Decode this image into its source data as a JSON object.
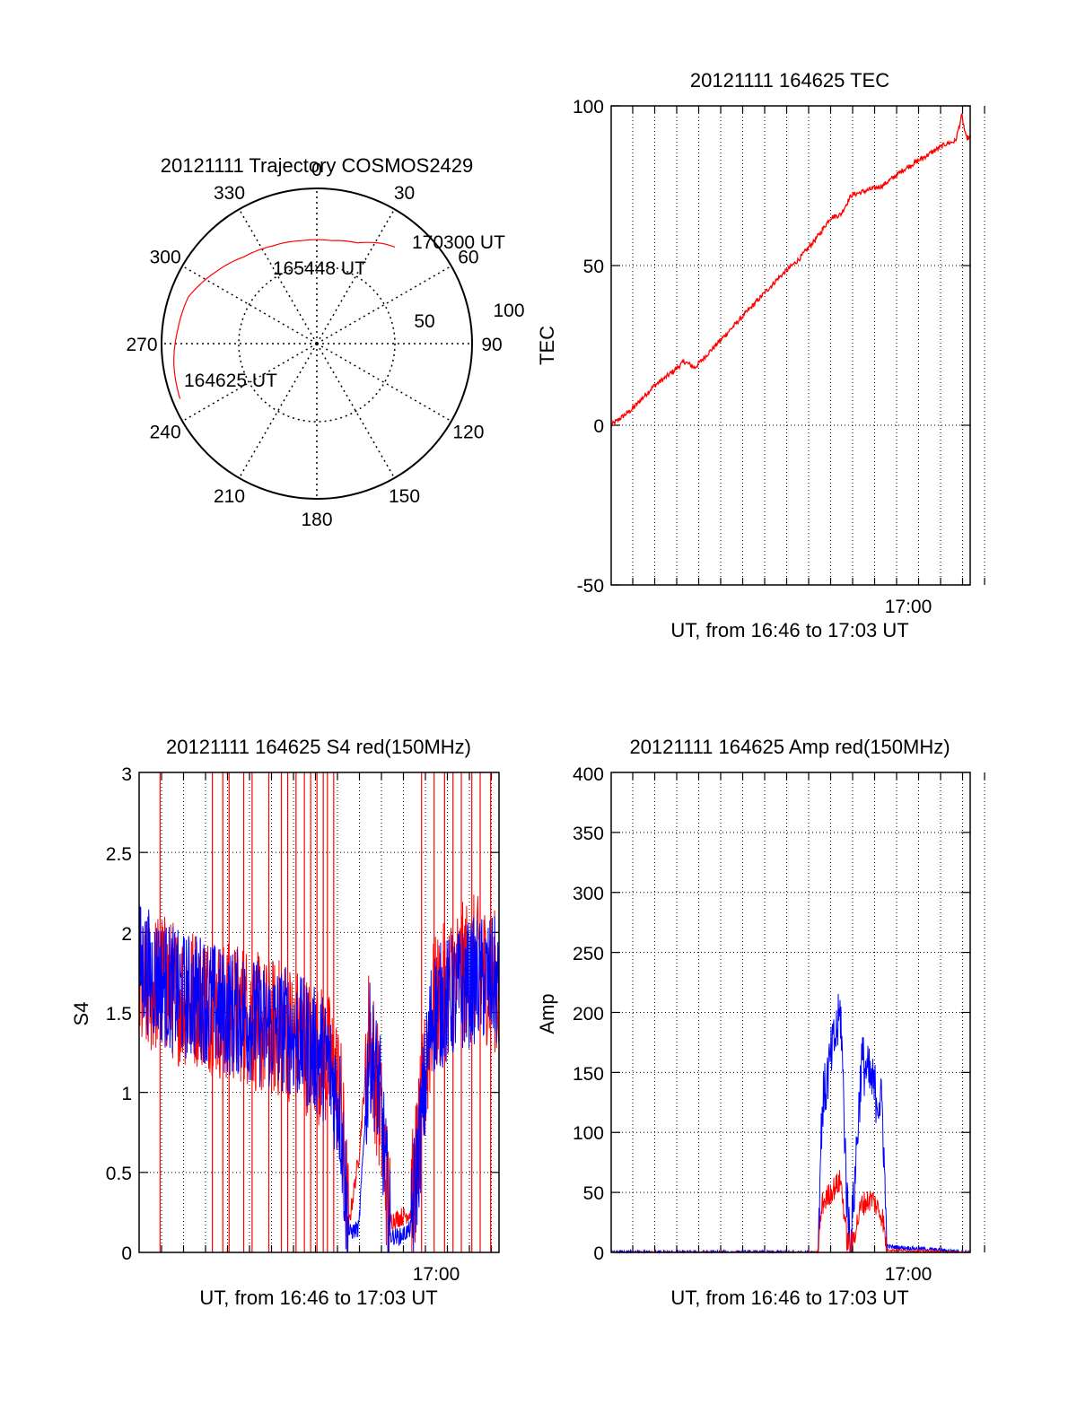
{
  "colors": {
    "red": "#ff0000",
    "blue": "#0000ff",
    "axis": "#000000",
    "grid": "#000000"
  },
  "polar": {
    "title": "20121111 Trajectory COSMOS2429",
    "type": "polar-trajectory",
    "azimuth_labels": [
      "0",
      "30",
      "60",
      "90",
      "120",
      "150",
      "180",
      "210",
      "240",
      "270",
      "300",
      "330"
    ],
    "ring_labels": [
      "50",
      "100"
    ],
    "annotations": [
      "170300 UT",
      "165448 UT",
      "164625 UT"
    ],
    "trajectory": [
      {
        "azimuth_deg": 248,
        "zenith_deg": 95
      },
      {
        "azimuth_deg": 262,
        "zenith_deg": 93
      },
      {
        "azimuth_deg": 276,
        "zenith_deg": 90
      },
      {
        "azimuth_deg": 290,
        "zenith_deg": 88
      },
      {
        "azimuth_deg": 305,
        "zenith_deg": 80
      },
      {
        "azimuth_deg": 320,
        "zenith_deg": 73
      },
      {
        "azimuth_deg": 336,
        "zenith_deg": 69
      },
      {
        "azimuth_deg": 352,
        "zenith_deg": 67
      },
      {
        "azimuth_deg": 8,
        "zenith_deg": 67
      },
      {
        "azimuth_deg": 22,
        "zenith_deg": 70
      },
      {
        "azimuth_deg": 33,
        "zenith_deg": 77
      },
      {
        "azimuth_deg": 39,
        "zenith_deg": 80
      }
    ]
  },
  "tec": {
    "title": "20121111 164625 TEC",
    "ylabel": "TEC",
    "xlabel": "UT, from 16:46 to 17:03 UT",
    "xtick_label": "17:00",
    "ytick_labels": [
      "-50",
      "0",
      "50",
      "100"
    ],
    "chart_data": {
      "type": "line",
      "x_unit": "minutes since 16:46 UT",
      "xlim": [
        0,
        17.2
      ],
      "ylim": [
        -50,
        100
      ],
      "series": [
        {
          "color": "red",
          "x": [
            0,
            1,
            2,
            3,
            3.5,
            4,
            5,
            6,
            7,
            8,
            9,
            10,
            10.5,
            11,
            11.5,
            12,
            13,
            14,
            15,
            16,
            16.5,
            16.8,
            17,
            17.2
          ],
          "y": [
            0,
            5,
            12,
            17,
            20,
            18,
            25,
            32,
            39,
            46,
            52,
            60,
            65,
            66,
            72,
            73,
            75,
            80,
            84,
            88,
            89,
            97,
            90,
            90
          ]
        }
      ]
    }
  },
  "s4": {
    "title": "20121111 164625 S4 red(150MHz)",
    "ylabel": "S4",
    "xlabel": "UT, from 16:46 to 17:03 UT",
    "xtick_label": "17:00",
    "ytick_labels": [
      "0",
      "0.5",
      "1",
      "1.5",
      "2",
      "2.5",
      "3"
    ],
    "chart_data": {
      "type": "line",
      "x_unit": "minutes since 16:46 UT",
      "xlim": [
        0,
        17.2
      ],
      "ylim": [
        0,
        3
      ],
      "series": [
        {
          "color": "red",
          "x": [
            0,
            1,
            2,
            3,
            4,
            5,
            6,
            7,
            8,
            9,
            9.6,
            10,
            10.5,
            11,
            11.5,
            12,
            12.5,
            13,
            14,
            15,
            16,
            17,
            17.2
          ],
          "y": [
            1.6,
            1.7,
            1.6,
            1.6,
            1.5,
            1.5,
            1.4,
            1.4,
            1.3,
            1.2,
            1.0,
            0.15,
            0.6,
            1.4,
            0.9,
            0.2,
            0.22,
            0.25,
            1.5,
            1.7,
            1.8,
            1.7,
            1.6
          ]
        },
        {
          "color": "blue",
          "x": [
            0,
            1,
            2,
            3,
            4,
            5,
            6,
            7,
            8,
            9,
            9.6,
            10,
            10.5,
            11,
            11.5,
            12,
            12.5,
            13,
            14,
            15,
            16,
            17,
            17.2
          ],
          "y": [
            1.8,
            1.7,
            1.6,
            1.6,
            1.5,
            1.5,
            1.4,
            1.4,
            1.3,
            1.2,
            0.9,
            0.12,
            0.15,
            1.3,
            1.0,
            0.1,
            0.1,
            0.15,
            1.5,
            1.6,
            1.7,
            1.7,
            1.6
          ]
        }
      ]
    }
  },
  "amp": {
    "title": "20121111 164625 Amp red(150MHz)",
    "ylabel": "Amp",
    "xlabel": "UT, from 16:46 to 17:03 UT",
    "xtick_label": "17:00",
    "ytick_labels": [
      "0",
      "50",
      "100",
      "150",
      "200",
      "250",
      "300",
      "350",
      "400"
    ],
    "chart_data": {
      "type": "line",
      "x_unit": "minutes since 16:46 UT",
      "xlim": [
        0,
        17.2
      ],
      "ylim": [
        0,
        400
      ],
      "series": [
        {
          "color": "red",
          "x": [
            0,
            9.9,
            10.1,
            10.5,
            11,
            11.3,
            11.5,
            12,
            12.5,
            13,
            13.2,
            17.2
          ],
          "y": [
            0,
            0,
            40,
            50,
            60,
            10,
            5,
            40,
            45,
            30,
            2,
            0
          ]
        },
        {
          "color": "blue",
          "x": [
            0,
            9.9,
            10.1,
            10.5,
            11,
            11.3,
            11.5,
            12,
            12.5,
            13,
            13.2,
            17.2
          ],
          "y": [
            0,
            0,
            120,
            160,
            200,
            40,
            10,
            160,
            140,
            120,
            5,
            0
          ]
        }
      ]
    }
  }
}
